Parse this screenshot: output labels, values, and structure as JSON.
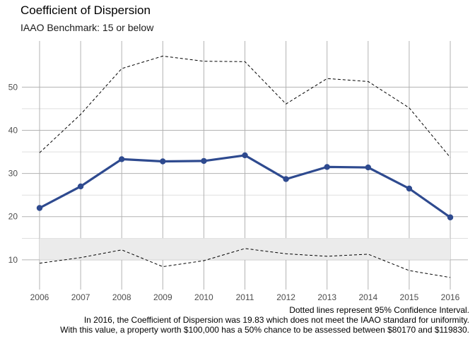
{
  "chart_data": {
    "type": "line",
    "title": "Coefficient of Dispersion",
    "subtitle": "IAAO Benchmark: 15 or below",
    "xlabel": "",
    "ylabel": "",
    "x": [
      2006,
      2007,
      2008,
      2009,
      2010,
      2011,
      2012,
      2013,
      2014,
      2015,
      2016
    ],
    "x_tick_labels": [
      "2006",
      "2007",
      "2008",
      "2009",
      "2010",
      "2011",
      "2012",
      "2013",
      "2014",
      "2015",
      "2016"
    ],
    "y_ticks": [
      10,
      20,
      30,
      40,
      50
    ],
    "y_tick_labels": [
      "10",
      "20",
      "30",
      "40",
      "50"
    ],
    "xlim": [
      2005.57,
      2016.43
    ],
    "ylim": [
      3.1,
      60.7
    ],
    "grid": true,
    "series": [
      {
        "role": "cod",
        "values": [
          22.0,
          27.0,
          33.3,
          32.8,
          32.9,
          34.2,
          28.7,
          31.5,
          31.4,
          26.5,
          19.83
        ],
        "color": "#2e4a8f",
        "style": "solid",
        "markers": true
      },
      {
        "role": "ci_upper",
        "values": [
          34.8,
          43.7,
          54.3,
          57.2,
          56.0,
          55.9,
          46.1,
          52.0,
          51.3,
          45.2,
          33.7
        ],
        "color": "#000000",
        "style": "dashed"
      },
      {
        "role": "ci_lower",
        "values": [
          9.2,
          10.5,
          12.3,
          8.4,
          9.8,
          12.6,
          11.4,
          10.8,
          11.3,
          7.5,
          5.9
        ],
        "color": "#000000",
        "style": "dashed"
      }
    ],
    "benchmark_band": {
      "from": 10,
      "to": 15,
      "color": "#ebebeb"
    }
  },
  "captions": {
    "line1": "Dotted lines represent 95% Confidence Interval.",
    "line2": "In 2016, the Coefficient of Dispersion was 19.83 which does not meet the IAAO standard for uniformity.",
    "line3": "With this value, a property worth $100,000 has a 50% chance to be assessed between $80170 and $119830."
  }
}
